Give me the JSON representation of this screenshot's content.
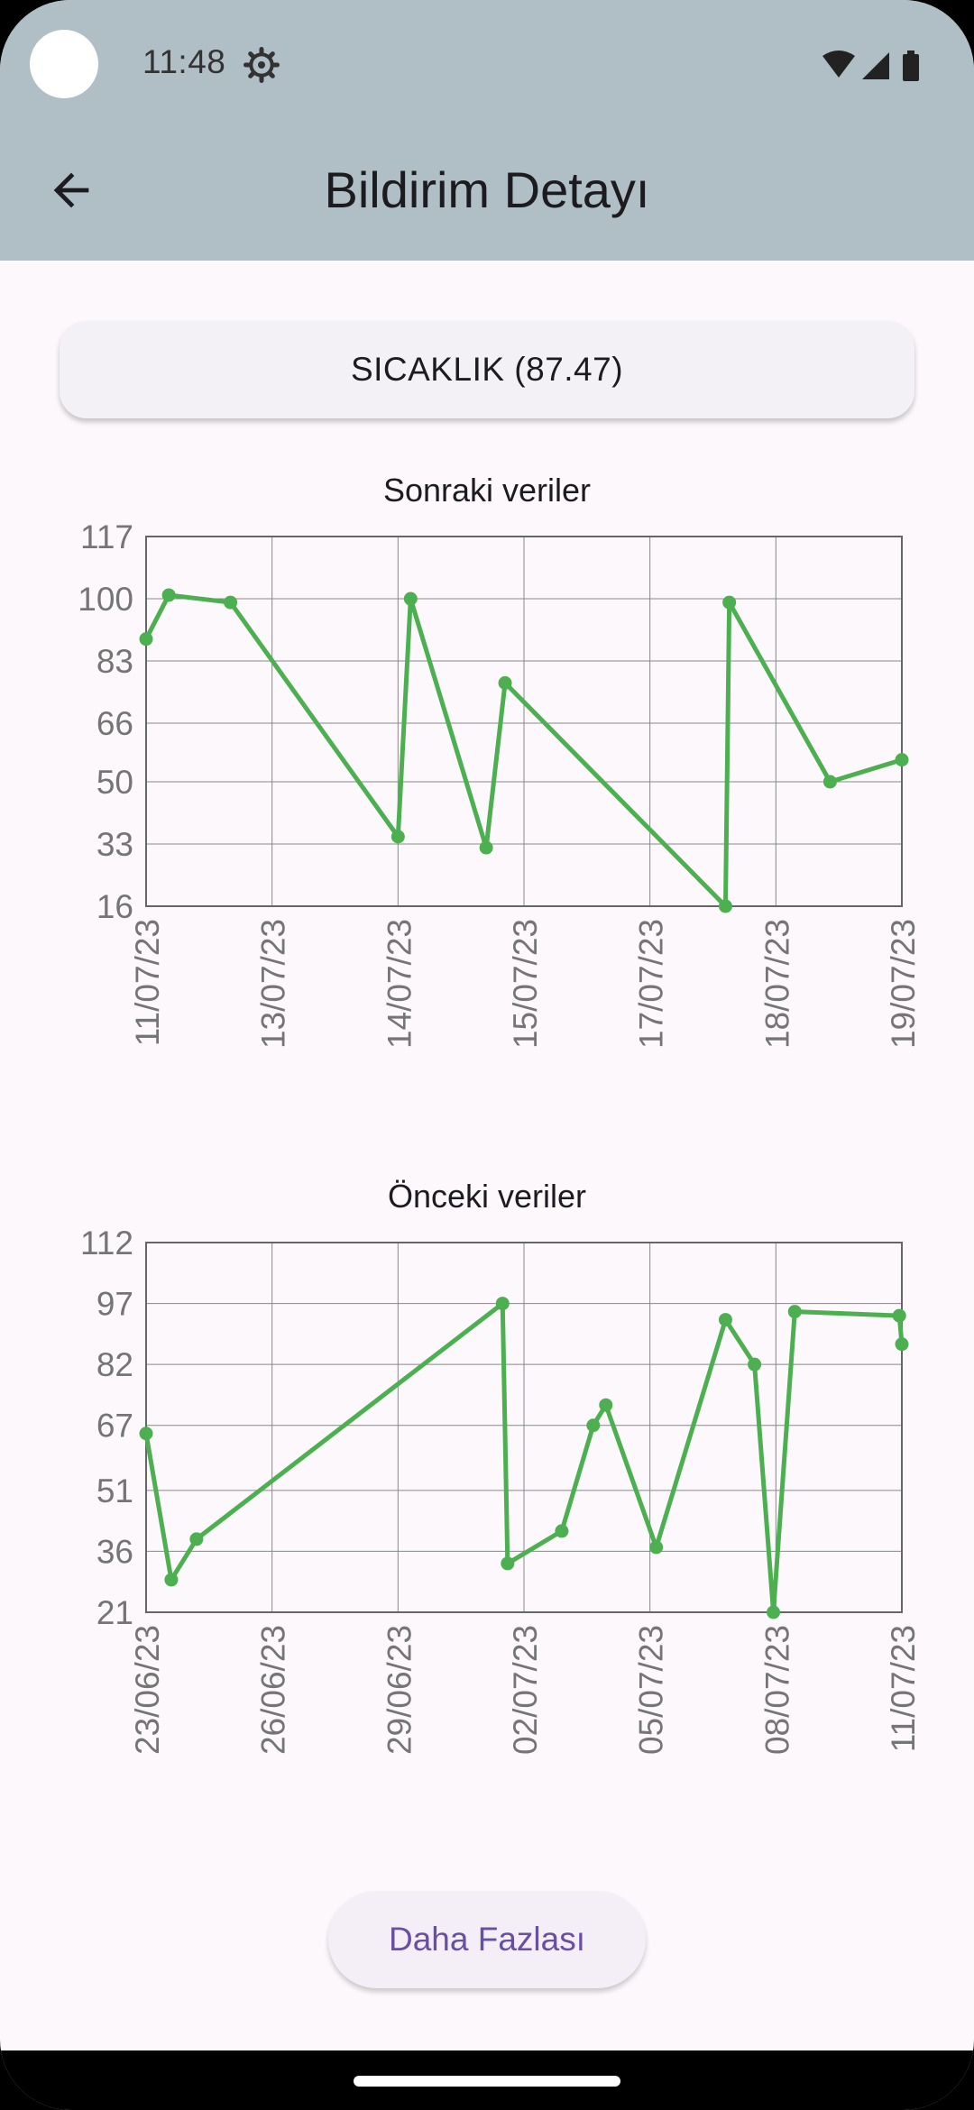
{
  "status_bar": {
    "time": "11:48"
  },
  "app_bar": {
    "title": "Bildirim Detayı"
  },
  "sensor_button": {
    "label": "SICAKLIK (87.47)"
  },
  "colors": {
    "app_bar": "#b0bec5",
    "line": "#4caf50",
    "accent": "#6750a4"
  },
  "icons": [
    "settings-gear-icon",
    "wifi-icon",
    "cellular-signal-icon",
    "battery-icon",
    "back-arrow-icon"
  ],
  "chart_data": [
    {
      "type": "line",
      "title": "Sonraki veriler",
      "y_ticks": [
        16,
        33,
        50,
        66,
        83,
        100,
        117
      ],
      "ylim": [
        16,
        117
      ],
      "x_tick_labels": [
        "11/07/23",
        "13/07/23",
        "14/07/23",
        "15/07/23",
        "17/07/23",
        "18/07/23",
        "19/07/23"
      ],
      "grid": true,
      "series": [
        {
          "points": [
            {
              "x": 0.0,
              "y": 89
            },
            {
              "x": 0.18,
              "y": 101
            },
            {
              "x": 0.67,
              "y": 99
            },
            {
              "x": 2.0,
              "y": 35
            },
            {
              "x": 2.1,
              "y": 100
            },
            {
              "x": 2.7,
              "y": 32
            },
            {
              "x": 2.85,
              "y": 77
            },
            {
              "x": 4.6,
              "y": 16
            },
            {
              "x": 4.63,
              "y": 99
            },
            {
              "x": 5.43,
              "y": 50
            },
            {
              "x": 6.0,
              "y": 56
            }
          ]
        }
      ]
    },
    {
      "type": "line",
      "title": "Önceki veriler",
      "y_ticks": [
        21,
        36,
        51,
        67,
        82,
        97,
        112
      ],
      "ylim": [
        21,
        112
      ],
      "x_tick_labels": [
        "23/06/23",
        "26/06/23",
        "29/06/23",
        "02/07/23",
        "05/07/23",
        "08/07/23",
        "11/07/23"
      ],
      "grid": true,
      "series": [
        {
          "points": [
            {
              "x": 0.0,
              "y": 65
            },
            {
              "x": 0.2,
              "y": 29
            },
            {
              "x": 0.4,
              "y": 39
            },
            {
              "x": 2.83,
              "y": 97
            },
            {
              "x": 2.87,
              "y": 33
            },
            {
              "x": 3.3,
              "y": 41
            },
            {
              "x": 3.55,
              "y": 67
            },
            {
              "x": 3.65,
              "y": 72
            },
            {
              "x": 4.05,
              "y": 37
            },
            {
              "x": 4.6,
              "y": 93
            },
            {
              "x": 4.83,
              "y": 82
            },
            {
              "x": 4.98,
              "y": 21
            },
            {
              "x": 5.15,
              "y": 95
            },
            {
              "x": 5.98,
              "y": 94
            },
            {
              "x": 6.0,
              "y": 87
            }
          ]
        }
      ]
    }
  ],
  "more_button": {
    "label": "Daha Fazlası"
  }
}
